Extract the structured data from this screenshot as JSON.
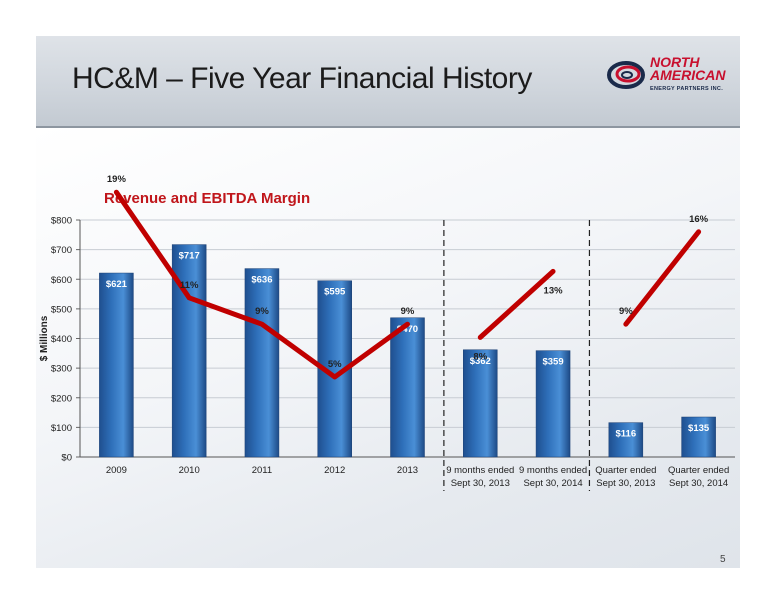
{
  "slide": {
    "title": "HC&M – Five Year Financial History",
    "page_number": "5",
    "logo": {
      "line1": "NORTH",
      "line2": "AMERICAN",
      "line3": "ENERGY PARTNERS INC."
    }
  },
  "colors": {
    "bar": "#2e6fb9",
    "line": "#c00000",
    "title_red": "#c0161b"
  },
  "chart_data": {
    "type": "bar",
    "title": "Revenue and EBITDA Margin",
    "ylabel": "$ Millions",
    "xlabel": "",
    "ylim": [
      0,
      800
    ],
    "yticks": [
      0,
      100,
      200,
      300,
      400,
      500,
      600,
      700,
      800
    ],
    "ytick_labels": [
      "$0",
      "$100",
      "$200",
      "$300",
      "$400",
      "$500",
      "$600",
      "$700",
      "$800"
    ],
    "grid": true,
    "categories": [
      [
        "2009"
      ],
      [
        "2010"
      ],
      [
        "2011"
      ],
      [
        "2012"
      ],
      [
        "2013"
      ],
      [
        "9 months ended",
        "Sept 30, 2013"
      ],
      [
        "9 months ended",
        "Sept 30, 2014"
      ],
      [
        "Quarter ended",
        "Sept 30, 2013"
      ],
      [
        "Quarter ended",
        "Sept 30, 2014"
      ]
    ],
    "series": [
      {
        "kind": "bar",
        "values": [
          621,
          717,
          636,
          595,
          470,
          362,
          359,
          116,
          135
        ],
        "labels": [
          "$621",
          "$717",
          "$636",
          "$595",
          "$470",
          "$362",
          "$359",
          "$116",
          "$135"
        ]
      },
      {
        "kind": "line",
        "values": [
          19,
          11,
          9,
          5,
          9,
          8,
          13,
          9,
          16
        ],
        "labels": [
          "19%",
          "11%",
          "9%",
          "5%",
          "9%",
          "8%",
          "13%",
          "9%",
          "16%"
        ],
        "segments": [
          [
            0,
            4
          ],
          [
            5,
            6
          ],
          [
            7,
            8
          ]
        ]
      }
    ],
    "separators_after": [
      4,
      6
    ]
  }
}
